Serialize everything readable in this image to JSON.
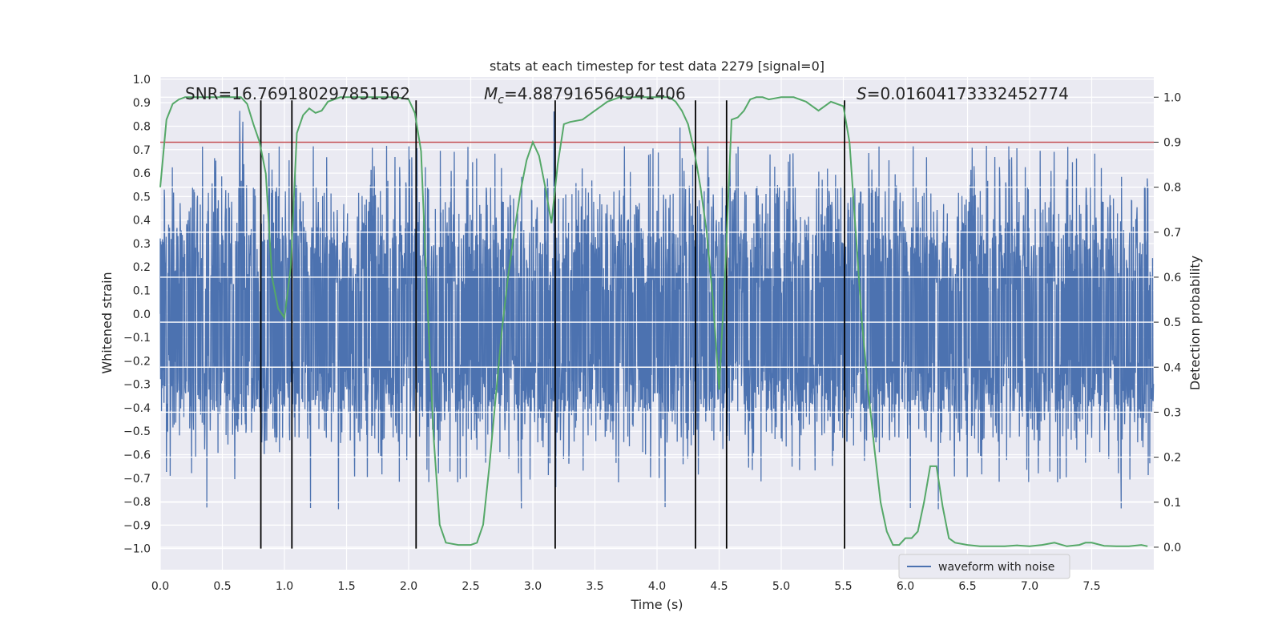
{
  "chart_data": {
    "type": "line",
    "title": "stats at each timestep for test data 2279 [signal=0]",
    "xlabel": "Time (s)",
    "ylabel": "Whitened strain",
    "y2label": "Detection probability",
    "xlim": [
      0,
      8
    ],
    "ylim": [
      -1.09,
      1.01
    ],
    "y2lim": [
      -0.05,
      1.045
    ],
    "x_ticks": [
      "0.0",
      "0.5",
      "1.0",
      "1.5",
      "2.0",
      "2.5",
      "3.0",
      "3.5",
      "4.0",
      "4.5",
      "5.0",
      "5.5",
      "6.0",
      "6.5",
      "7.0",
      "7.5"
    ],
    "y_ticks": [
      "1.0",
      "0.9",
      "0.8",
      "0.7",
      "0.6",
      "0.5",
      "0.4",
      "0.3",
      "0.2",
      "0.1",
      "0.0",
      "−0.1",
      "−0.2",
      "−0.3",
      "−0.4",
      "−0.5",
      "−0.6",
      "−0.7",
      "−0.8",
      "−0.9",
      "−1.0"
    ],
    "y_tick_values": [
      1.0,
      0.9,
      0.8,
      0.7,
      0.6,
      0.5,
      0.4,
      0.3,
      0.2,
      0.1,
      0.0,
      -0.1,
      -0.2,
      -0.3,
      -0.4,
      -0.5,
      -0.6,
      -0.7,
      -0.8,
      -0.9,
      -1.0
    ],
    "y2_ticks": [
      "1.0",
      "0.9",
      "0.8",
      "0.7",
      "0.6",
      "0.5",
      "0.4",
      "0.3",
      "0.2",
      "0.1",
      "0.0"
    ],
    "y2_tick_values": [
      1.0,
      0.9,
      0.8,
      0.7,
      0.6,
      0.5,
      0.4,
      0.3,
      0.2,
      0.1,
      0.0
    ],
    "annotations": {
      "snr": "SNR=16.769180297851562",
      "mc_symbol": "M",
      "mc_sub": "c",
      "mc_value": "=4.887916564941406",
      "s_symbol": "S",
      "s_value": "=0.01604173332452774"
    },
    "legend": {
      "label": "waveform with noise",
      "position": "lower-right"
    },
    "waveform": {
      "name": "waveform with noise",
      "color": "#4c72b0",
      "dense_range": [
        -0.42,
        0.34
      ],
      "amplitude_range": [
        -0.85,
        0.88
      ],
      "samples": 3200
    },
    "threshold": {
      "value": 0.9,
      "axis": "y2",
      "color": "#c44e52"
    },
    "detection_probability": {
      "name": "detection probability",
      "color": "#55a868",
      "x": [
        0.0,
        0.05,
        0.1,
        0.15,
        0.2,
        0.3,
        0.4,
        0.5,
        0.6,
        0.65,
        0.7,
        0.75,
        0.8,
        0.85,
        0.9,
        0.95,
        1.0,
        1.05,
        1.1,
        1.15,
        1.2,
        1.25,
        1.3,
        1.35,
        1.4,
        1.45,
        1.5,
        1.6,
        1.7,
        1.8,
        1.9,
        2.0,
        2.05,
        2.1,
        2.15,
        2.2,
        2.25,
        2.3,
        2.4,
        2.5,
        2.55,
        2.6,
        2.65,
        2.7,
        2.75,
        2.8,
        2.85,
        2.9,
        2.95,
        3.0,
        3.05,
        3.1,
        3.15,
        3.2,
        3.25,
        3.3,
        3.4,
        3.5,
        3.55,
        3.6,
        3.65,
        3.7,
        3.8,
        3.9,
        4.0,
        4.1,
        4.15,
        4.2,
        4.25,
        4.3,
        4.35,
        4.4,
        4.45,
        4.5,
        4.55,
        4.6,
        4.65,
        4.7,
        4.75,
        4.8,
        4.85,
        4.9,
        5.0,
        5.1,
        5.2,
        5.3,
        5.4,
        5.5,
        5.55,
        5.6,
        5.65,
        5.7,
        5.75,
        5.8,
        5.85,
        5.9,
        5.95,
        6.0,
        6.05,
        6.1,
        6.15,
        6.2,
        6.25,
        6.3,
        6.35,
        6.4,
        6.5,
        6.6,
        6.7,
        6.8,
        6.9,
        7.0,
        7.1,
        7.2,
        7.3,
        7.4,
        7.45,
        7.5,
        7.6,
        7.7,
        7.8,
        7.9,
        7.95
      ],
      "y": [
        0.8,
        0.95,
        0.985,
        0.995,
        1.0,
        1.0,
        1.0,
        1.0,
        1.0,
        1.0,
        0.985,
        0.94,
        0.9,
        0.83,
        0.6,
        0.53,
        0.51,
        0.62,
        0.92,
        0.96,
        0.975,
        0.965,
        0.97,
        0.99,
        0.995,
        1.0,
        1.0,
        1.0,
        1.0,
        1.0,
        1.0,
        0.995,
        0.965,
        0.88,
        0.55,
        0.25,
        0.05,
        0.01,
        0.005,
        0.005,
        0.01,
        0.05,
        0.18,
        0.33,
        0.48,
        0.6,
        0.7,
        0.79,
        0.86,
        0.9,
        0.87,
        0.8,
        0.72,
        0.85,
        0.94,
        0.945,
        0.95,
        0.97,
        0.98,
        0.99,
        0.995,
        1.0,
        1.0,
        1.0,
        1.0,
        1.0,
        0.99,
        0.97,
        0.94,
        0.88,
        0.8,
        0.7,
        0.55,
        0.35,
        0.62,
        0.95,
        0.955,
        0.97,
        0.995,
        1.0,
        1.0,
        0.995,
        1.0,
        1.0,
        0.99,
        0.97,
        0.99,
        0.98,
        0.9,
        0.7,
        0.5,
        0.35,
        0.22,
        0.1,
        0.035,
        0.005,
        0.005,
        0.02,
        0.02,
        0.035,
        0.1,
        0.18,
        0.18,
        0.09,
        0.02,
        0.01,
        0.005,
        0.002,
        0.002,
        0.002,
        0.004,
        0.002,
        0.005,
        0.01,
        0.002,
        0.005,
        0.01,
        0.01,
        0.003,
        0.002,
        0.002,
        0.005,
        0.002
      ]
    },
    "vertical_markers": {
      "color": "#000000",
      "x": [
        0.81,
        1.06,
        2.06,
        3.18,
        4.31,
        4.56,
        5.51
      ],
      "y_from": -1.0,
      "y_to": 0.91
    }
  }
}
